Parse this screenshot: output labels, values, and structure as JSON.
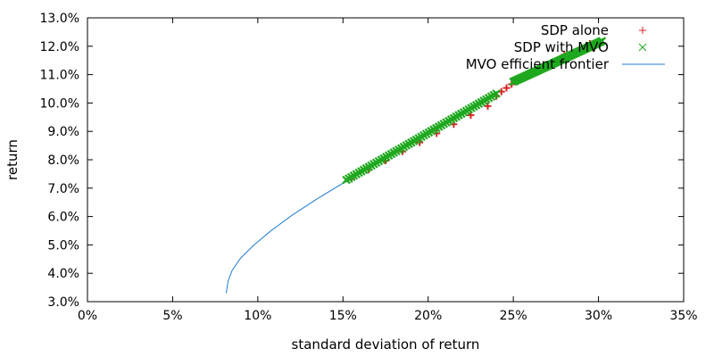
{
  "chart_data": {
    "type": "scatter",
    "title": "",
    "xlabel": "standard deviation of return",
    "ylabel": "return",
    "xlim": [
      0,
      0.35
    ],
    "ylim": [
      0.03,
      0.13
    ],
    "x_ticks": [
      0,
      0.05,
      0.1,
      0.15,
      0.2,
      0.25,
      0.3,
      0.35
    ],
    "x_tick_labels": [
      "0%",
      "5%",
      "10%",
      "15%",
      "20%",
      "25%",
      "30%",
      "35%"
    ],
    "y_ticks": [
      0.03,
      0.04,
      0.05,
      0.06,
      0.07,
      0.08,
      0.09,
      0.1,
      0.11,
      0.12,
      0.13
    ],
    "y_tick_labels": [
      "3.0%",
      "4.0%",
      "5.0%",
      "6.0%",
      "7.0%",
      "8.0%",
      "9.0%",
      "10.0%",
      "11.0%",
      "12.0%",
      "13.0%"
    ],
    "grid": false,
    "legend_position": "top-right",
    "series": [
      {
        "name": "SDP alone",
        "kind": "points",
        "marker": "plus",
        "color": "#d62728",
        "x": [
          0.155,
          0.165,
          0.175,
          0.185,
          0.195,
          0.205,
          0.215,
          0.225,
          0.235,
          0.24,
          0.243,
          0.246,
          0.249,
          0.252,
          0.265,
          0.28,
          0.295
        ],
        "y": [
          0.0733,
          0.0765,
          0.0797,
          0.0829,
          0.0861,
          0.0893,
          0.0925,
          0.0957,
          0.0989,
          0.1024,
          0.104,
          0.1053,
          0.1066,
          0.1079,
          0.1124,
          0.117,
          0.1209
        ]
      },
      {
        "name": "SDP with MVO",
        "kind": "points",
        "marker": "cross",
        "color": "#1fa81f",
        "x_ranges": [
          [
            0.152,
            0.24
          ],
          [
            0.25,
            0.302
          ]
        ],
        "y_ranges": [
          [
            0.0729,
            0.1033
          ],
          [
            0.1075,
            0.1218
          ]
        ]
      },
      {
        "name": "MVO efficient frontier",
        "kind": "line",
        "color": "#1f7bd1",
        "x": [
          0.0815,
          0.0825,
          0.085,
          0.09,
          0.098,
          0.108,
          0.12,
          0.135,
          0.152
        ],
        "y": [
          0.033,
          0.0372,
          0.0411,
          0.0454,
          0.0501,
          0.0551,
          0.0604,
          0.0663,
          0.0725
        ]
      }
    ]
  }
}
